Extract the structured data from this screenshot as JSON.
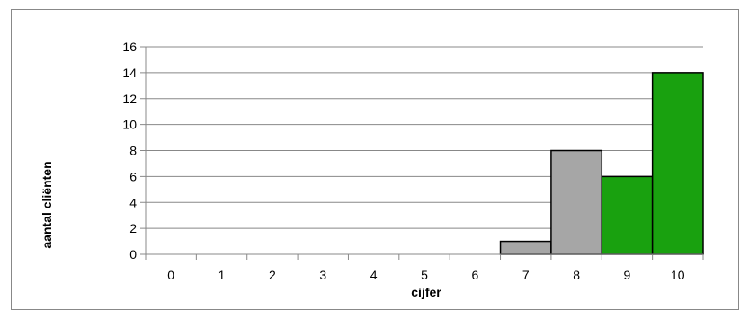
{
  "chart_data": {
    "type": "bar",
    "title": "",
    "xlabel": "cijfer",
    "ylabel": "aantal cliënten",
    "categories": [
      "0",
      "1",
      "2",
      "3",
      "4",
      "5",
      "6",
      "7",
      "8",
      "9",
      "10"
    ],
    "values": [
      0,
      0,
      0,
      0,
      0,
      0,
      0,
      1,
      8,
      6,
      14
    ],
    "bar_colors": [
      "#a6a6a6",
      "#a6a6a6",
      "#a6a6a6",
      "#a6a6a6",
      "#a6a6a6",
      "#a6a6a6",
      "#a6a6a6",
      "#a6a6a6",
      "#a6a6a6",
      "#19a10f",
      "#19a10f"
    ],
    "ylim": [
      0,
      16
    ],
    "yticks": [
      "0",
      "2",
      "4",
      "6",
      "8",
      "10",
      "12",
      "14",
      "16"
    ],
    "grid": true,
    "legend": "none"
  }
}
